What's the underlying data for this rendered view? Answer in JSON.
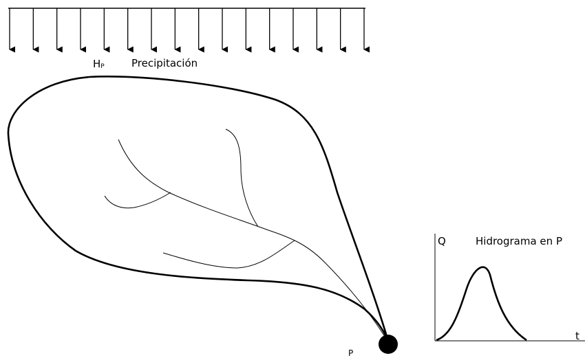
{
  "rain": {
    "symbol_main": "H",
    "symbol_sub": "P",
    "label": "Precipitación",
    "arrow_count": 16
  },
  "outlet": {
    "label": "P"
  },
  "hydrograph": {
    "title": "Hidrograma en P",
    "y_axis_label": "Q",
    "x_axis_label": "t"
  },
  "colors": {
    "ink": "#000000",
    "background": "#ffffff"
  }
}
